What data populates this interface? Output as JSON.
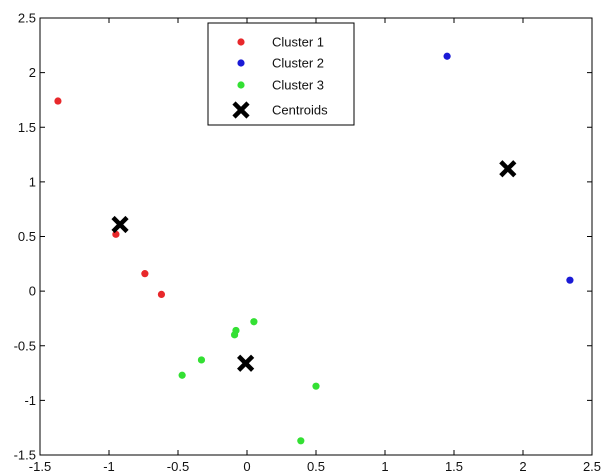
{
  "chart_data": {
    "type": "scatter",
    "title": "",
    "xlabel": "",
    "ylabel": "",
    "xlim": [
      -1.5,
      2.5
    ],
    "ylim": [
      -1.5,
      2.5
    ],
    "xticks": [
      -1.5,
      -1,
      -0.5,
      0,
      0.5,
      1,
      1.5,
      2,
      2.5
    ],
    "yticks": [
      -1.5,
      -1,
      -0.5,
      0,
      0.5,
      1,
      1.5,
      2,
      2.5
    ],
    "xtick_labels": [
      "-1.5",
      "-1",
      "-0.5",
      "0",
      "0.5",
      "1",
      "1.5",
      "2",
      "2.5"
    ],
    "ytick_labels": [
      "-1.5",
      "-1",
      "-0.5",
      "0",
      "0.5",
      "1",
      "1.5",
      "2",
      "2.5"
    ],
    "grid": false,
    "legend_position": "top-center",
    "series": [
      {
        "name": "Cluster 1",
        "color": "#e8282b",
        "marker": "dot",
        "points": [
          {
            "x": -1.37,
            "y": 1.74
          },
          {
            "x": -0.95,
            "y": 0.52
          },
          {
            "x": -0.74,
            "y": 0.16
          },
          {
            "x": -0.62,
            "y": -0.03
          }
        ]
      },
      {
        "name": "Cluster 2",
        "color": "#1a1ad6",
        "marker": "dot",
        "points": [
          {
            "x": 1.45,
            "y": 2.15
          },
          {
            "x": 2.34,
            "y": 0.1
          }
        ]
      },
      {
        "name": "Cluster 3",
        "color": "#33e033",
        "marker": "dot",
        "points": [
          {
            "x": 0.05,
            "y": -0.28
          },
          {
            "x": -0.08,
            "y": -0.36
          },
          {
            "x": -0.09,
            "y": -0.4
          },
          {
            "x": -0.33,
            "y": -0.63
          },
          {
            "x": -0.47,
            "y": -0.77
          },
          {
            "x": 0.5,
            "y": -0.87
          },
          {
            "x": 0.39,
            "y": -1.37
          }
        ]
      },
      {
        "name": "Centroids",
        "color": "#000000",
        "marker": "x",
        "points": [
          {
            "x": -0.92,
            "y": 0.61
          },
          {
            "x": 1.89,
            "y": 1.12
          },
          {
            "x": -0.01,
            "y": -0.66
          }
        ]
      }
    ]
  }
}
